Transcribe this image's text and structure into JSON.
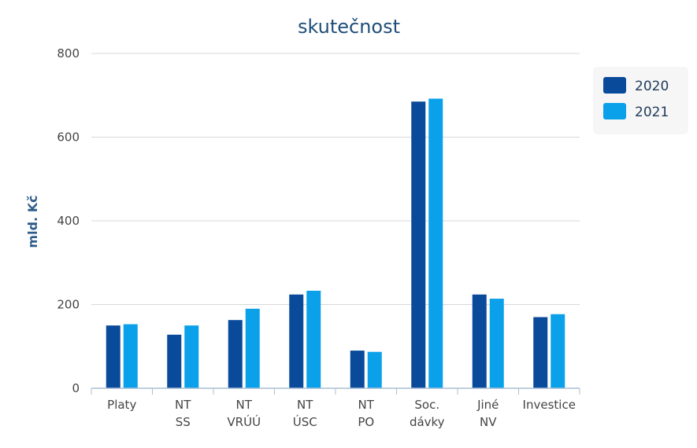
{
  "chart_data": {
    "type": "bar",
    "title": "skutečnost",
    "xlabel": "",
    "ylabel": "mld. Kč",
    "ylim": [
      0,
      800
    ],
    "yticks": [
      0,
      200,
      400,
      600,
      800
    ],
    "grid": true,
    "legend_position": "top-right",
    "categories": [
      [
        "Platy"
      ],
      [
        "NT",
        "SS"
      ],
      [
        "NT",
        "VRÚÚ"
      ],
      [
        "NT",
        "ÚSC"
      ],
      [
        "NT",
        "PO"
      ],
      [
        "Soc.",
        "dávky"
      ],
      [
        "Jiné",
        "NV"
      ],
      [
        "Investice"
      ]
    ],
    "series": [
      {
        "name": "2020",
        "color": "#0a4a9a",
        "values": [
          150,
          128,
          163,
          224,
          90,
          685,
          224,
          170
        ]
      },
      {
        "name": "2021",
        "color": "#0aa0ea",
        "values": [
          153,
          150,
          190,
          233,
          87,
          692,
          214,
          177
        ]
      }
    ]
  }
}
